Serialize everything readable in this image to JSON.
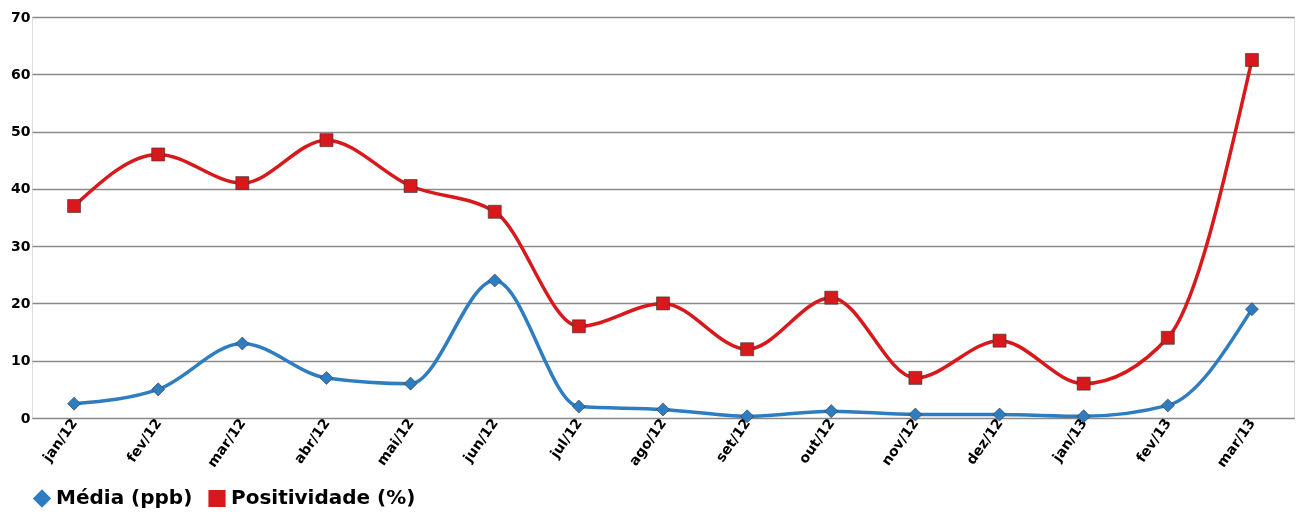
{
  "chart_data": {
    "type": "line",
    "categories": [
      "jan/12",
      "fev/12",
      "mar/12",
      "abr/12",
      "mai/12",
      "jun/12",
      "jul/12",
      "ago/12",
      "set/12",
      "out/12",
      "nov/12",
      "dez/12",
      "jan/13",
      "fev/13",
      "mar/13"
    ],
    "series": [
      {
        "name": "Média (ppb)",
        "color": "#2e7dc0",
        "marker": "diamond",
        "values": [
          2.5,
          5,
          13,
          7,
          6,
          24,
          2,
          1.5,
          0.3,
          1.2,
          0.6,
          0.6,
          0.3,
          2.2,
          19
        ]
      },
      {
        "name": "Positividade (%)",
        "color": "#d7191c",
        "marker": "square",
        "values": [
          37,
          46,
          41,
          48.5,
          40.5,
          36,
          16,
          20,
          12,
          21,
          7,
          13.5,
          6,
          14,
          62.5
        ]
      }
    ],
    "ylim": [
      0,
      70
    ],
    "yticks": [
      0,
      10,
      20,
      30,
      40,
      50,
      60,
      70
    ],
    "grid": "y",
    "legend": "bottom",
    "line_style": "solid"
  }
}
